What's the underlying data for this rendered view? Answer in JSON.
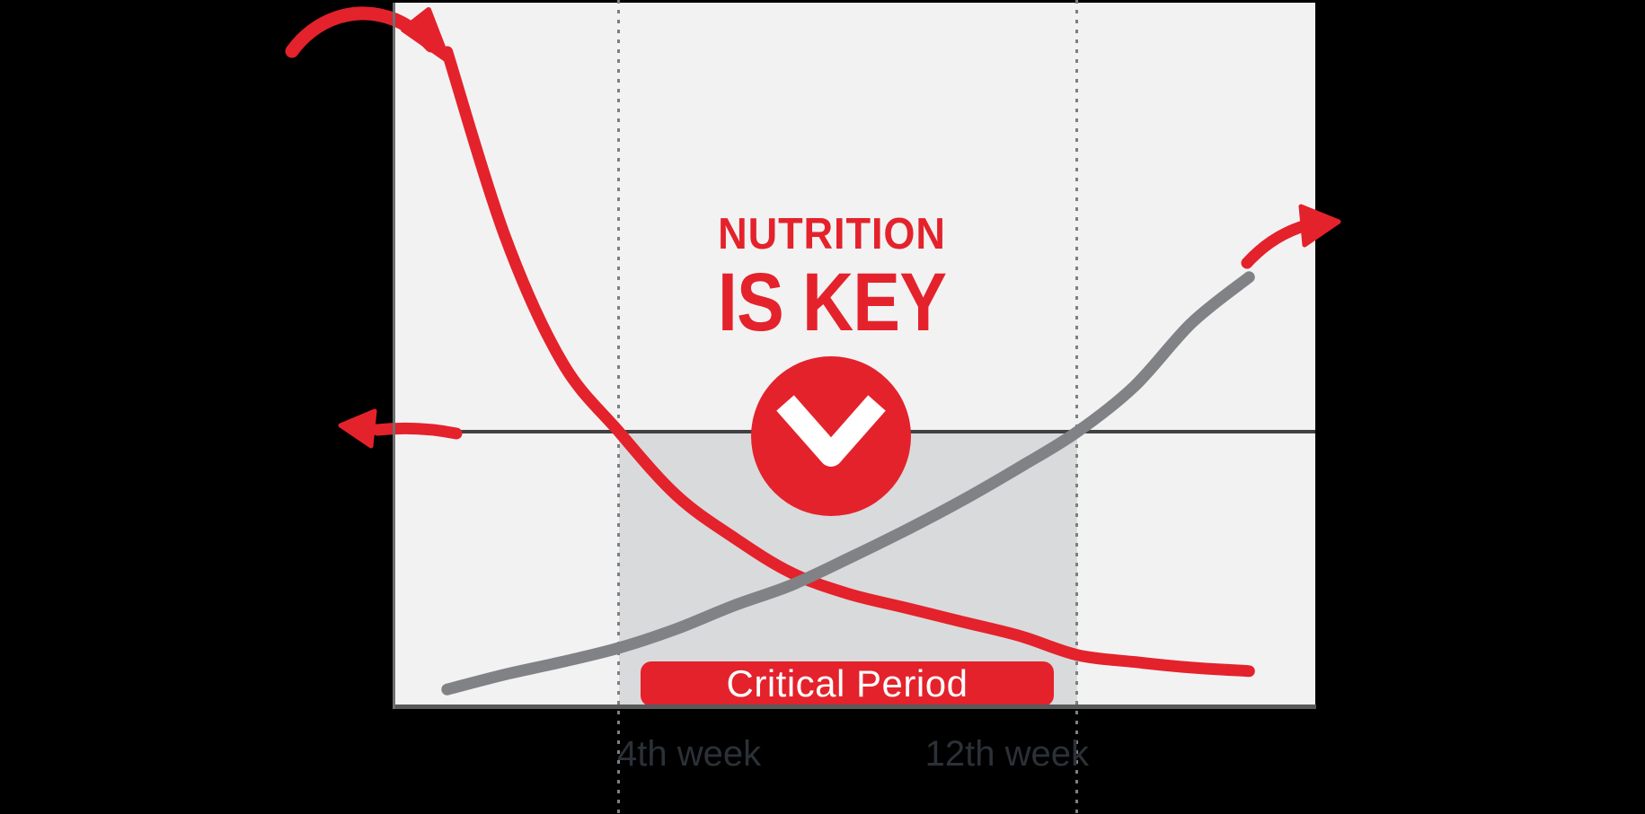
{
  "page": {
    "background_color": "#000000"
  },
  "title": {
    "line1": "NUTRITION",
    "line2": "IS KEY",
    "color": "#e4222b"
  },
  "banner": {
    "label": "Critical Period",
    "background_color": "#e4222b",
    "text_color": "#ffffff"
  },
  "x_axis_labels": {
    "start_label": "4th week",
    "end_label": "12th week",
    "color": "#2b3137"
  },
  "icons": {
    "chevron_down_icon": "white chevron pointing down inside red circle",
    "curved_arrow_top_left_icon": "hand-drawn red arrow pointing into start of declining curve",
    "curved_arrow_top_right_icon": "hand-drawn red arrow continuing rising curve up-right",
    "arrow_left_icon": "hand-drawn red arrow pointing left along reference line"
  },
  "colors": {
    "accent_red": "#e4222b",
    "chart_background": "#f2f2f3",
    "shaded_band": "#d9dadb",
    "gray_curve": "#808285",
    "reference_line": "#414042",
    "axis_line": "#58595b",
    "dotted_gridline": "#7d7f81",
    "week_label_text": "#2b3137"
  },
  "chart_data": {
    "type": "line",
    "x_units": "weeks",
    "x": [
      1,
      2,
      3,
      4,
      5,
      6,
      7,
      8,
      9,
      10,
      11,
      12,
      13,
      14,
      15
    ],
    "series": [
      {
        "name": "declining-red-curve",
        "color": "#e4222b",
        "values": [
          93,
          67,
          49,
          39,
          30,
          24,
          19,
          16,
          14,
          12,
          10,
          7.3,
          6.3,
          5.5,
          5
        ]
      },
      {
        "name": "rising-gray-curve",
        "color": "#808285",
        "values": [
          2.4,
          4.5,
          6.3,
          8.3,
          11,
          14.3,
          17.2,
          21,
          25,
          29.3,
          34,
          39,
          45.5,
          54.5,
          61
        ]
      }
    ],
    "values_units": "percent of axis height (estimated, no numeric scale shown)",
    "curve_crossing_point": {
      "week": 7.3,
      "level": 18
    },
    "reference_line_level": 39,
    "x_tick_labels": [
      {
        "week": 4,
        "label": "4th week"
      },
      {
        "week": 12,
        "label": "12th week"
      }
    ],
    "shaded_region": {
      "from_week": 4,
      "to_week": 12,
      "label": "Critical Period"
    },
    "annotations": [
      "NUTRITION IS KEY"
    ],
    "grid": "two vertical dotted gridlines only",
    "legend": "none",
    "axis_numeric_labels_shown": false
  }
}
